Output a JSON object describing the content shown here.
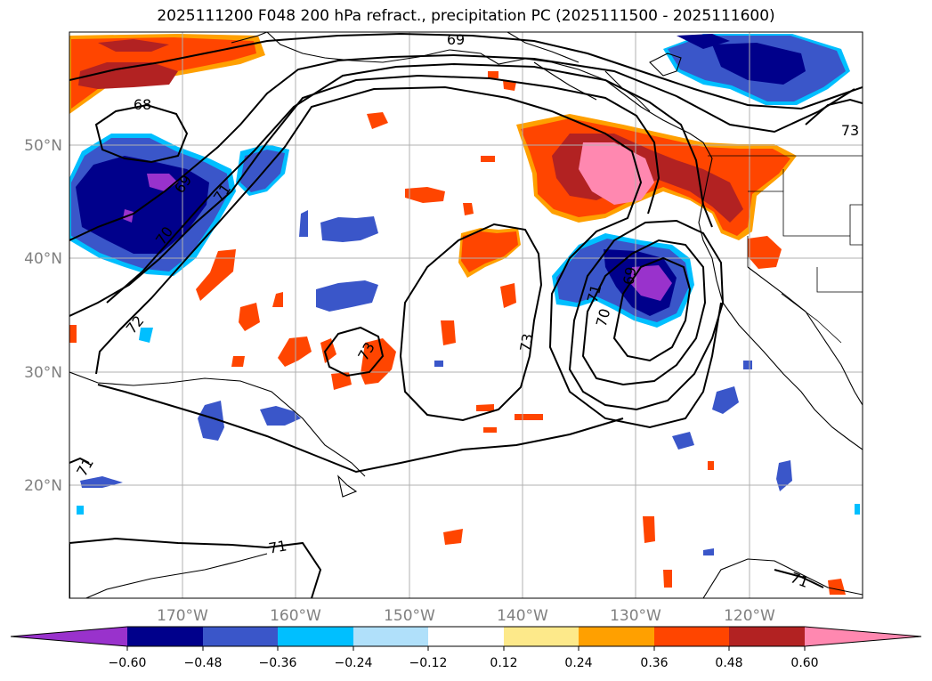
{
  "title": "2025111200 F048 200 hPa refract., precipitation PC (2025111500 - 2025111600)",
  "map": {
    "lat_labels": [
      "50°N",
      "40°N",
      "30°N",
      "20°N"
    ],
    "lon_labels": [
      "170°W",
      "160°W",
      "150°W",
      "140°W",
      "130°W",
      "120°W"
    ],
    "contour_labels": [
      "69",
      "68",
      "69",
      "71",
      "70",
      "72",
      "73",
      "73",
      "71",
      "70",
      "69",
      "73",
      "71",
      "71"
    ]
  },
  "colorbar": {
    "ticks": [
      "−0.60",
      "−0.48",
      "−0.36",
      "−0.24",
      "−0.12",
      "0.12",
      "0.24",
      "0.36",
      "0.48",
      "0.60"
    ],
    "colors": [
      "#9932cc",
      "#00008b",
      "#3a56c9",
      "#00bfff",
      "#b0e0fa",
      "#ffffff",
      "#fde98a",
      "#ffa000",
      "#ff4500",
      "#b22222",
      "#ff88b0"
    ]
  },
  "colors": {
    "blue_dark": "#00008b",
    "blue_mid": "#3a56c9",
    "cyan": "#00bfff",
    "light_blue": "#b0e0fa",
    "purple": "#9932cc",
    "yellow": "#fde98a",
    "orange": "#ffa000",
    "red_orange": "#ff4500",
    "dark_red": "#b22222",
    "pink": "#ff88b0"
  }
}
